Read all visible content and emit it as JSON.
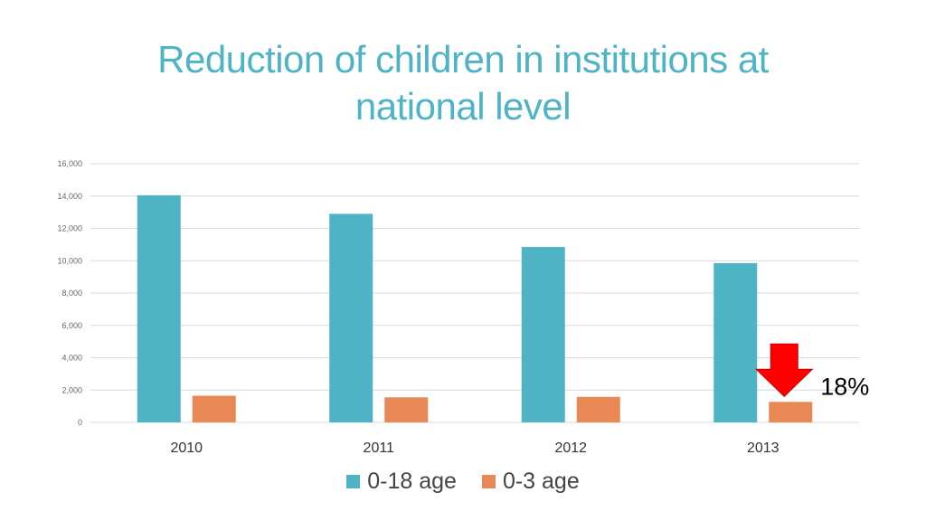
{
  "chart_data": {
    "type": "bar",
    "title": "Reduction of children in institutions at national level",
    "categories": [
      "2010",
      "2011",
      "2012",
      "2013"
    ],
    "series": [
      {
        "name": "0-18 age",
        "values": [
          14050,
          12900,
          10850,
          9850
        ]
      },
      {
        "name": "0-3 age",
        "values": [
          1650,
          1550,
          1580,
          1270
        ]
      }
    ],
    "ylim": [
      0,
      16000
    ],
    "yticks": [
      "0",
      "2,000",
      "4,000",
      "6,000",
      "8,000",
      "10,000",
      "12,000",
      "14,000",
      "16,000"
    ],
    "grid": true,
    "legend": "bottom",
    "annotation": {
      "text": "18%",
      "category": "2013",
      "series": "0-3 age"
    },
    "colors": {
      "series": [
        "#4fb3c6",
        "#e88854"
      ],
      "arrow": "#ff0000",
      "title": "#4fb3c6"
    }
  }
}
